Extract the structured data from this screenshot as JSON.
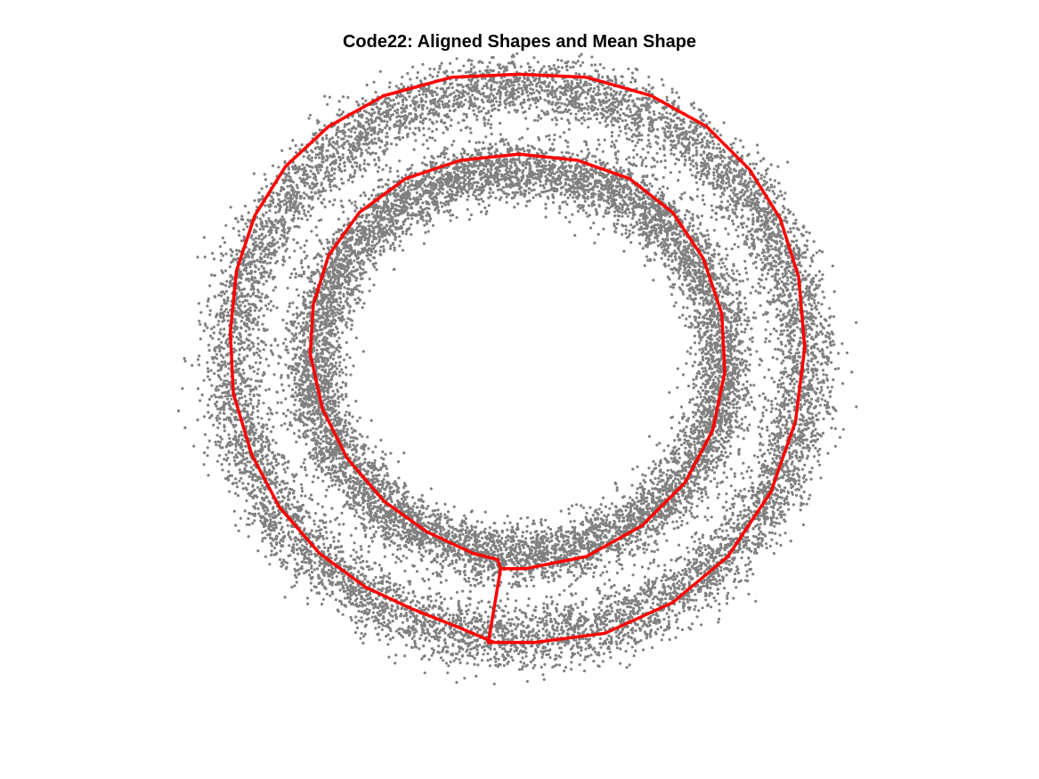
{
  "chart_data": {
    "type": "scatter",
    "title": "Code22: Aligned Shapes and Mean Shape",
    "xlabel": "",
    "ylabel": "",
    "axis": "off",
    "grid": false,
    "aspect": "equal",
    "xlim": [
      -1.1,
      1.1
    ],
    "ylim": [
      -1.1,
      1.1
    ],
    "colors": {
      "aligned_points": "#808080",
      "mean_shape": "#ff0000"
    },
    "series": [
      {
        "kind": "points",
        "role": "aligned-shapes",
        "point_count_per_ring": 9000,
        "rings": [
          {
            "cx": 0.0,
            "cy": 0.03,
            "rx": 0.93,
            "ry": 0.9,
            "spread": 0.055
          },
          {
            "cx": 0.0,
            "cy": 0.03,
            "rx": 0.67,
            "ry": 0.63,
            "spread": 0.05
          }
        ]
      },
      {
        "kind": "line",
        "role": "mean-shape",
        "x": [
          -0.08,
          -0.2,
          -0.35,
          -0.5,
          -0.65,
          -0.78,
          -0.87,
          -0.93,
          -0.94,
          -0.92,
          -0.86,
          -0.76,
          -0.62,
          -0.44,
          -0.22,
          0.0,
          0.22,
          0.43,
          0.61,
          0.75,
          0.85,
          0.91,
          0.93,
          0.9,
          0.82,
          0.68,
          0.5,
          0.28,
          0.05,
          -0.1,
          -0.06,
          -0.07,
          -0.15,
          -0.3,
          -0.44,
          -0.56,
          -0.64,
          -0.68,
          -0.67,
          -0.62,
          -0.52,
          -0.37,
          -0.19,
          0.0,
          0.19,
          0.36,
          0.5,
          0.6,
          0.66,
          0.67,
          0.63,
          0.54,
          0.4,
          0.22,
          0.02,
          -0.06
        ],
        "y": [
          -0.88,
          -0.83,
          -0.77,
          -0.7,
          -0.59,
          -0.44,
          -0.27,
          -0.07,
          0.13,
          0.33,
          0.51,
          0.67,
          0.8,
          0.9,
          0.96,
          0.97,
          0.96,
          0.9,
          0.8,
          0.66,
          0.5,
          0.31,
          0.08,
          -0.16,
          -0.39,
          -0.6,
          -0.75,
          -0.85,
          -0.88,
          -0.88,
          -0.64,
          -0.61,
          -0.59,
          -0.52,
          -0.42,
          -0.28,
          -0.12,
          0.06,
          0.22,
          0.38,
          0.52,
          0.63,
          0.69,
          0.71,
          0.69,
          0.63,
          0.52,
          0.37,
          0.19,
          0.0,
          -0.19,
          -0.36,
          -0.5,
          -0.6,
          -0.64,
          -0.64
        ]
      }
    ]
  }
}
